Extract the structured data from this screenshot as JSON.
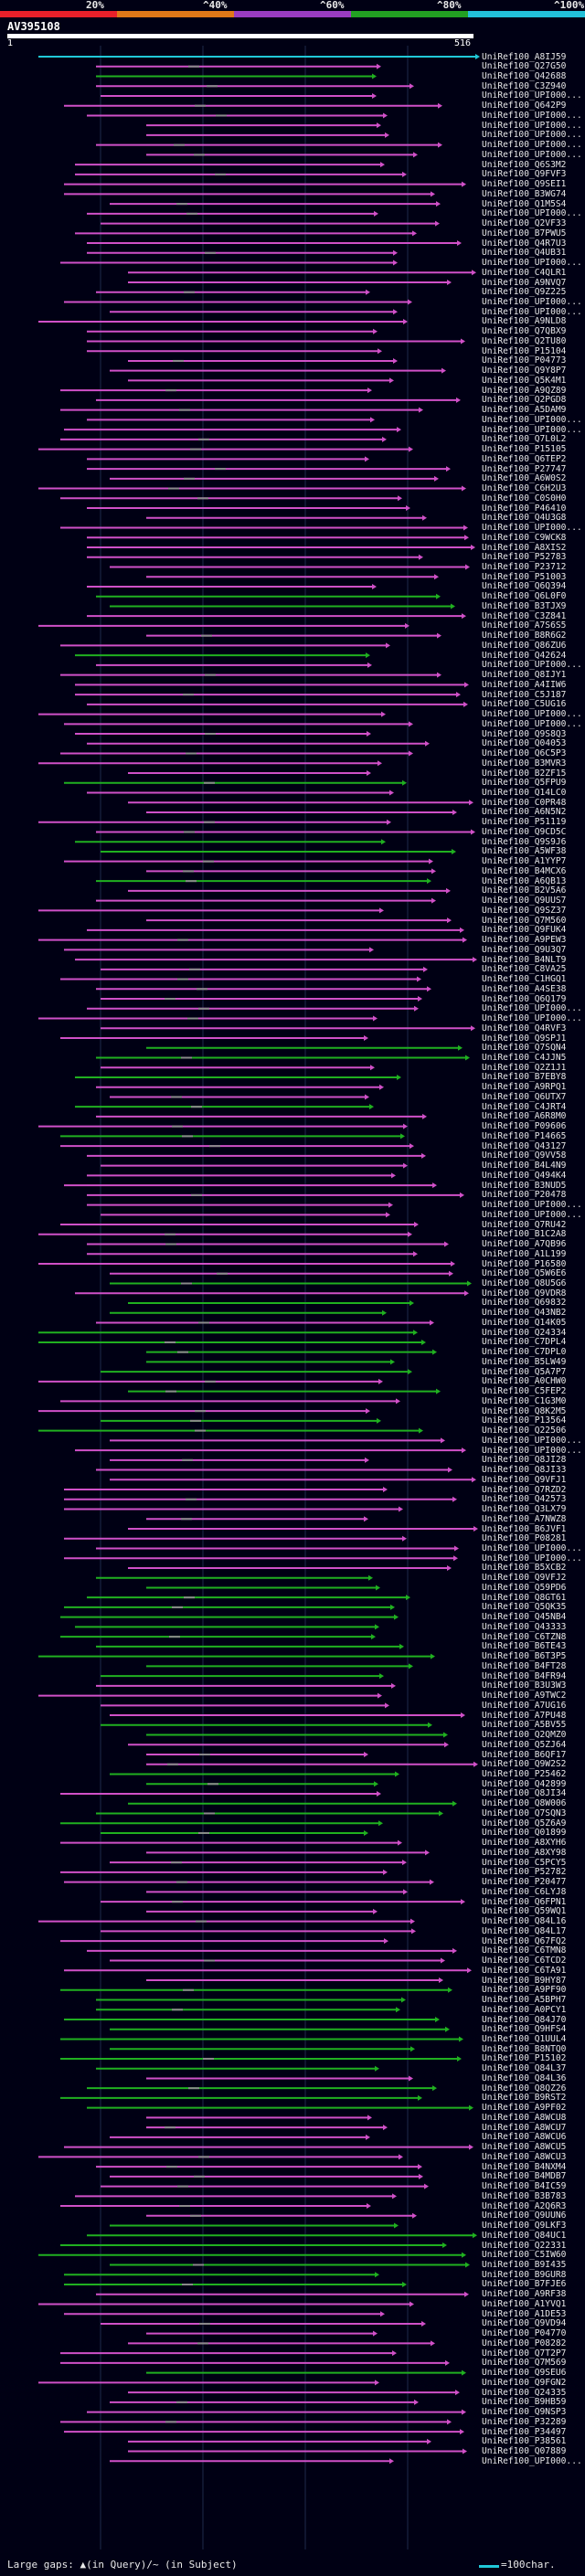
{
  "query": {
    "title": "AV395108",
    "start": "1",
    "end": "516"
  },
  "scale": [
    {
      "label": "20%",
      "color": "#e8202a"
    },
    {
      "label": "^40%",
      "color": "#e07818"
    },
    {
      "label": "^60%",
      "color": "#9a3cc0"
    },
    {
      "label": "^80%",
      "color": "#22a022"
    },
    {
      "label": "^100%",
      "color": "#22c0d8"
    }
  ],
  "hits": [
    {
      "id": "UniRef100_A8IJ59",
      "c": "cyan"
    },
    {
      "id": "UniRef100_Q27G50",
      "c": "magenta"
    },
    {
      "id": "UniRef100_Q42688",
      "c": "green"
    },
    {
      "id": "UniRef100_C3Z940",
      "c": "magenta"
    },
    {
      "id": "UniRef100_UPI000...",
      "c": "magenta"
    },
    {
      "id": "UniRef100_Q642P9",
      "c": "magenta"
    },
    {
      "id": "UniRef100_UPI000...",
      "c": "magenta"
    },
    {
      "id": "UniRef100_UPI000...",
      "c": "magenta"
    },
    {
      "id": "UniRef100_UPI000...",
      "c": "magenta"
    },
    {
      "id": "UniRef100_UPI000...",
      "c": "magenta"
    },
    {
      "id": "UniRef100_UPI000...",
      "c": "magenta"
    },
    {
      "id": "UniRef100_Q6S3M2",
      "c": "magenta"
    },
    {
      "id": "UniRef100_Q9FVF3",
      "c": "magenta"
    },
    {
      "id": "UniRef100_Q9SEI1",
      "c": "magenta"
    },
    {
      "id": "UniRef100_B3WG74",
      "c": "magenta"
    },
    {
      "id": "UniRef100_Q1M5S4",
      "c": "magenta"
    },
    {
      "id": "UniRef100_UPI000...",
      "c": "magenta"
    },
    {
      "id": "UniRef100_Q2VF33",
      "c": "magenta"
    },
    {
      "id": "UniRef100_B7PWU5",
      "c": "magenta"
    },
    {
      "id": "UniRef100_Q4R7U3",
      "c": "magenta"
    },
    {
      "id": "UniRef100_Q4UB31",
      "c": "magenta"
    },
    {
      "id": "UniRef100_UPI000...",
      "c": "magenta"
    },
    {
      "id": "UniRef100_C4QLR1",
      "c": "magenta"
    },
    {
      "id": "UniRef100_A9NVQ7",
      "c": "magenta"
    },
    {
      "id": "UniRef100_Q9Z225",
      "c": "magenta"
    },
    {
      "id": "UniRef100_UPI000...",
      "c": "magenta"
    },
    {
      "id": "UniRef100_UPI000...",
      "c": "magenta"
    },
    {
      "id": "UniRef100_A9NLD8",
      "c": "magenta"
    },
    {
      "id": "UniRef100_Q7QBX9",
      "c": "magenta"
    },
    {
      "id": "UniRef100_Q2TU80",
      "c": "magenta"
    },
    {
      "id": "UniRef100_P15104",
      "c": "magenta"
    },
    {
      "id": "UniRef100_P04773",
      "c": "magenta"
    },
    {
      "id": "UniRef100_Q9Y8P7",
      "c": "magenta"
    },
    {
      "id": "UniRef100_Q5K4M1",
      "c": "magenta"
    },
    {
      "id": "UniRef100_A9QZ89",
      "c": "magenta"
    },
    {
      "id": "UniRef100_Q2PGD8",
      "c": "magenta"
    },
    {
      "id": "UniRef100_A5DAM9",
      "c": "magenta"
    },
    {
      "id": "UniRef100_UPI000...",
      "c": "magenta"
    },
    {
      "id": "UniRef100_UPI000...",
      "c": "magenta"
    },
    {
      "id": "UniRef100_Q7L0L2",
      "c": "magenta"
    },
    {
      "id": "UniRef100_P15105",
      "c": "magenta"
    },
    {
      "id": "UniRef100_Q6TEP2",
      "c": "magenta"
    },
    {
      "id": "UniRef100_P27747",
      "c": "magenta"
    },
    {
      "id": "UniRef100_A6W0S2",
      "c": "magenta"
    },
    {
      "id": "UniRef100_C6H2U3",
      "c": "magenta"
    },
    {
      "id": "UniRef100_C0S0H0",
      "c": "magenta"
    },
    {
      "id": "UniRef100_P46410",
      "c": "magenta"
    },
    {
      "id": "UniRef100_Q4U3G8",
      "c": "magenta"
    },
    {
      "id": "UniRef100_UPI000...",
      "c": "magenta"
    },
    {
      "id": "UniRef100_C9WCK8",
      "c": "magenta"
    },
    {
      "id": "UniRef100_A8XIS2",
      "c": "magenta"
    },
    {
      "id": "UniRef100_P52783",
      "c": "magenta"
    },
    {
      "id": "UniRef100_P23712",
      "c": "magenta"
    },
    {
      "id": "UniRef100_P51003",
      "c": "magenta"
    },
    {
      "id": "UniRef100_Q6Q394",
      "c": "magenta"
    },
    {
      "id": "UniRef100_Q6L0F0",
      "c": "green"
    },
    {
      "id": "UniRef100_B3TJX9",
      "c": "green"
    },
    {
      "id": "UniRef100_C3Z841",
      "c": "magenta"
    },
    {
      "id": "UniRef100_A7S6S5",
      "c": "magenta"
    },
    {
      "id": "UniRef100_B8R6G2",
      "c": "magenta"
    },
    {
      "id": "UniRef100_Q86ZU6",
      "c": "magenta"
    },
    {
      "id": "UniRef100_Q42624",
      "c": "green"
    },
    {
      "id": "UniRef100_UPI000...",
      "c": "magenta"
    },
    {
      "id": "UniRef100_Q8IJY1",
      "c": "magenta"
    },
    {
      "id": "UniRef100_A4IIW6",
      "c": "magenta"
    },
    {
      "id": "UniRef100_C5J187",
      "c": "magenta"
    },
    {
      "id": "UniRef100_C5UG16",
      "c": "magenta"
    },
    {
      "id": "UniRef100_UPI000...",
      "c": "magenta"
    },
    {
      "id": "UniRef100_UPI000...",
      "c": "magenta"
    },
    {
      "id": "UniRef100_Q9S8Q3",
      "c": "magenta"
    },
    {
      "id": "UniRef100_Q04053",
      "c": "magenta"
    },
    {
      "id": "UniRef100_Q6C5P3",
      "c": "magenta"
    },
    {
      "id": "UniRef100_B3MVR3",
      "c": "magenta"
    },
    {
      "id": "UniRef100_B2ZF15",
      "c": "magenta"
    },
    {
      "id": "UniRef100_Q5FPU9",
      "c": "green"
    },
    {
      "id": "UniRef100_Q14LC0",
      "c": "magenta"
    },
    {
      "id": "UniRef100_C0PR48",
      "c": "magenta"
    },
    {
      "id": "UniRef100_A6N5N2",
      "c": "magenta"
    },
    {
      "id": "UniRef100_P51119",
      "c": "magenta"
    },
    {
      "id": "UniRef100_Q9CD5C",
      "c": "magenta"
    },
    {
      "id": "UniRef100_Q9S9J6",
      "c": "green"
    },
    {
      "id": "UniRef100_A5WF38",
      "c": "green"
    },
    {
      "id": "UniRef100_A1YYP7",
      "c": "magenta"
    },
    {
      "id": "UniRef100_B4MCX6",
      "c": "magenta"
    },
    {
      "id": "UniRef100_A6QB13",
      "c": "green"
    },
    {
      "id": "UniRef100_B2V5A6",
      "c": "magenta"
    },
    {
      "id": "UniRef100_Q9UUS7",
      "c": "magenta"
    },
    {
      "id": "UniRef100_Q9SZ37",
      "c": "magenta"
    },
    {
      "id": "UniRef100_Q7M560",
      "c": "magenta"
    },
    {
      "id": "UniRef100_Q9FUK4",
      "c": "magenta"
    },
    {
      "id": "UniRef100_A9PEW3",
      "c": "magenta"
    },
    {
      "id": "UniRef100_Q9U3Q7",
      "c": "magenta"
    },
    {
      "id": "UniRef100_B4NLT9",
      "c": "magenta"
    },
    {
      "id": "UniRef100_C8VA25",
      "c": "magenta"
    },
    {
      "id": "UniRef100_C1HGQ1",
      "c": "magenta"
    },
    {
      "id": "UniRef100_A4SE38",
      "c": "magenta"
    },
    {
      "id": "UniRef100_Q6Q179",
      "c": "magenta"
    },
    {
      "id": "UniRef100_UPI000...",
      "c": "magenta"
    },
    {
      "id": "UniRef100_UPI000...",
      "c": "magenta"
    },
    {
      "id": "UniRef100_Q4RVF3",
      "c": "magenta"
    },
    {
      "id": "UniRef100_Q9SPJ1",
      "c": "magenta"
    },
    {
      "id": "UniRef100_Q7SQN4",
      "c": "green"
    },
    {
      "id": "UniRef100_C4JJN5",
      "c": "green"
    },
    {
      "id": "UniRef100_Q2Z1J1",
      "c": "magenta"
    },
    {
      "id": "UniRef100_B7EBY8",
      "c": "green"
    },
    {
      "id": "UniRef100_A9RPQ1",
      "c": "magenta"
    },
    {
      "id": "UniRef100_Q6UTX7",
      "c": "magenta"
    },
    {
      "id": "UniRef100_C4JRT4",
      "c": "green"
    },
    {
      "id": "UniRef100_A6R8M0",
      "c": "magenta"
    },
    {
      "id": "UniRef100_P09606",
      "c": "magenta"
    },
    {
      "id": "UniRef100_P14665",
      "c": "green"
    },
    {
      "id": "UniRef100_Q43127",
      "c": "magenta"
    },
    {
      "id": "UniRef100_Q9VV58",
      "c": "magenta"
    },
    {
      "id": "UniRef100_B4L4N9",
      "c": "magenta"
    },
    {
      "id": "UniRef100_Q494K4",
      "c": "magenta"
    },
    {
      "id": "UniRef100_B3NUD5",
      "c": "magenta"
    },
    {
      "id": "UniRef100_P20478",
      "c": "magenta"
    },
    {
      "id": "UniRef100_UPI000...",
      "c": "magenta"
    },
    {
      "id": "UniRef100_UPI000...",
      "c": "magenta"
    },
    {
      "id": "UniRef100_Q7RU42",
      "c": "magenta"
    },
    {
      "id": "UniRef100_B1C2A8",
      "c": "magenta"
    },
    {
      "id": "UniRef100_A7QB96",
      "c": "magenta"
    },
    {
      "id": "UniRef100_A1L199",
      "c": "magenta"
    },
    {
      "id": "UniRef100_P16580",
      "c": "magenta"
    },
    {
      "id": "UniRef100_Q5W6E6",
      "c": "magenta"
    },
    {
      "id": "UniRef100_Q8U5G6",
      "c": "green"
    },
    {
      "id": "UniRef100_Q9VDR8",
      "c": "magenta"
    },
    {
      "id": "UniRef100_Q69832",
      "c": "green"
    },
    {
      "id": "UniRef100_Q43NB2",
      "c": "green"
    },
    {
      "id": "UniRef100_Q14K05",
      "c": "magenta"
    },
    {
      "id": "UniRef100_Q24334",
      "c": "green"
    },
    {
      "id": "UniRef100_C7DPL4",
      "c": "green"
    },
    {
      "id": "UniRef100_C7DPL0",
      "c": "green"
    },
    {
      "id": "UniRef100_B5LW49",
      "c": "green"
    },
    {
      "id": "UniRef100_Q5A7P7",
      "c": "green"
    },
    {
      "id": "UniRef100_A0CHW0",
      "c": "magenta"
    },
    {
      "id": "UniRef100_C5FEP2",
      "c": "green"
    },
    {
      "id": "UniRef100_C1G3M0",
      "c": "magenta"
    },
    {
      "id": "UniRef100_Q8K2M5",
      "c": "magenta"
    },
    {
      "id": "UniRef100_P13564",
      "c": "green"
    },
    {
      "id": "UniRef100_Q22506",
      "c": "green"
    },
    {
      "id": "UniRef100_UPI000...",
      "c": "magenta"
    },
    {
      "id": "UniRef100_UPI000...",
      "c": "magenta"
    },
    {
      "id": "UniRef100_Q8JI28",
      "c": "magenta"
    },
    {
      "id": "UniRef100_Q8JI33",
      "c": "magenta"
    },
    {
      "id": "UniRef100_Q9VFJ1",
      "c": "magenta"
    },
    {
      "id": "UniRef100_Q7RZD2",
      "c": "magenta"
    },
    {
      "id": "UniRef100_Q42573",
      "c": "magenta"
    },
    {
      "id": "UniRef100_Q3LX79",
      "c": "magenta"
    },
    {
      "id": "UniRef100_A7NWZ8",
      "c": "magenta"
    },
    {
      "id": "UniRef100_B6JVF1",
      "c": "magenta"
    },
    {
      "id": "UniRef100_P08281",
      "c": "magenta"
    },
    {
      "id": "UniRef100_UPI000...",
      "c": "magenta"
    },
    {
      "id": "UniRef100_UPI000...",
      "c": "magenta"
    },
    {
      "id": "UniRef100_B5XCB2",
      "c": "magenta"
    },
    {
      "id": "UniRef100_Q9VFJ2",
      "c": "green"
    },
    {
      "id": "UniRef100_Q59PD6",
      "c": "green"
    },
    {
      "id": "UniRef100_Q8GT61",
      "c": "green"
    },
    {
      "id": "UniRef100_Q5QK35",
      "c": "green"
    },
    {
      "id": "UniRef100_Q45NB4",
      "c": "green"
    },
    {
      "id": "UniRef100_Q43333",
      "c": "green"
    },
    {
      "id": "UniRef100_C6TZN8",
      "c": "green"
    },
    {
      "id": "UniRef100_B6TE43",
      "c": "green"
    },
    {
      "id": "UniRef100_B6T3P5",
      "c": "green"
    },
    {
      "id": "UniRef100_B4FT28",
      "c": "green"
    },
    {
      "id": "UniRef100_B4FR94",
      "c": "green"
    },
    {
      "id": "UniRef100_B3U3W3",
      "c": "magenta"
    },
    {
      "id": "UniRef100_A9TWC2",
      "c": "magenta"
    },
    {
      "id": "UniRef100_A7UG16",
      "c": "magenta"
    },
    {
      "id": "UniRef100_A7PU48",
      "c": "magenta"
    },
    {
      "id": "UniRef100_A5BV55",
      "c": "green"
    },
    {
      "id": "UniRef100_Q2QMZ0",
      "c": "green"
    },
    {
      "id": "UniRef100_Q5ZJ64",
      "c": "magenta"
    },
    {
      "id": "UniRef100_B6QF17",
      "c": "magenta"
    },
    {
      "id": "UniRef100_Q9W2S2",
      "c": "magenta"
    },
    {
      "id": "UniRef100_P25462",
      "c": "green"
    },
    {
      "id": "UniRef100_Q42899",
      "c": "green"
    },
    {
      "id": "UniRef100_Q8JI34",
      "c": "magenta"
    },
    {
      "id": "UniRef100_Q8W006",
      "c": "green"
    },
    {
      "id": "UniRef100_Q7SQN3",
      "c": "green"
    },
    {
      "id": "UniRef100_Q5Z6A9",
      "c": "green"
    },
    {
      "id": "UniRef100_Q01899",
      "c": "green"
    },
    {
      "id": "UniRef100_A8XYH6",
      "c": "magenta"
    },
    {
      "id": "UniRef100_A8XY98",
      "c": "magenta"
    },
    {
      "id": "UniRef100_C5PCY5",
      "c": "magenta"
    },
    {
      "id": "UniRef100_P52782",
      "c": "magenta"
    },
    {
      "id": "UniRef100_P20477",
      "c": "magenta"
    },
    {
      "id": "UniRef100_C6LYJ8",
      "c": "magenta"
    },
    {
      "id": "UniRef100_Q6FPN1",
      "c": "magenta"
    },
    {
      "id": "UniRef100_Q59WQ1",
      "c": "magenta"
    },
    {
      "id": "UniRef100_Q84L16",
      "c": "magenta"
    },
    {
      "id": "UniRef100_Q84L17",
      "c": "magenta"
    },
    {
      "id": "UniRef100_Q67FQ2",
      "c": "magenta"
    },
    {
      "id": "UniRef100_C6TMN8",
      "c": "magenta"
    },
    {
      "id": "UniRef100_C6TCD2",
      "c": "magenta"
    },
    {
      "id": "UniRef100_C6TA91",
      "c": "magenta"
    },
    {
      "id": "UniRef100_B9HY87",
      "c": "magenta"
    },
    {
      "id": "UniRef100_A9PF90",
      "c": "green"
    },
    {
      "id": "UniRef100_A5BPH7",
      "c": "green"
    },
    {
      "id": "UniRef100_A0PCY1",
      "c": "green"
    },
    {
      "id": "UniRef100_Q84J70",
      "c": "green"
    },
    {
      "id": "UniRef100_Q9HFS4",
      "c": "green"
    },
    {
      "id": "UniRef100_Q1UUL4",
      "c": "green"
    },
    {
      "id": "UniRef100_B8NTQ0",
      "c": "green"
    },
    {
      "id": "UniRef100_P15102",
      "c": "green"
    },
    {
      "id": "UniRef100_Q84L37",
      "c": "green"
    },
    {
      "id": "UniRef100_Q84L36",
      "c": "magenta"
    },
    {
      "id": "UniRef100_Q8QZ26",
      "c": "green"
    },
    {
      "id": "UniRef100_B9RST2",
      "c": "green"
    },
    {
      "id": "UniRef100_A9PF02",
      "c": "green"
    },
    {
      "id": "UniRef100_A8WCU8",
      "c": "magenta"
    },
    {
      "id": "UniRef100_A8WCU7",
      "c": "magenta"
    },
    {
      "id": "UniRef100_A8WCU6",
      "c": "magenta"
    },
    {
      "id": "UniRef100_A8WCU5",
      "c": "magenta"
    },
    {
      "id": "UniRef100_A8WCU3",
      "c": "magenta"
    },
    {
      "id": "UniRef100_B4NXM4",
      "c": "magenta"
    },
    {
      "id": "UniRef100_B4MDB7",
      "c": "magenta"
    },
    {
      "id": "UniRef100_B4IC59",
      "c": "magenta"
    },
    {
      "id": "UniRef100_B3B783",
      "c": "magenta"
    },
    {
      "id": "UniRef100_A2Q6R3",
      "c": "magenta"
    },
    {
      "id": "UniRef100_Q9UUN6",
      "c": "magenta"
    },
    {
      "id": "UniRef100_Q9LKF3",
      "c": "green"
    },
    {
      "id": "UniRef100_Q84UC1",
      "c": "green"
    },
    {
      "id": "UniRef100_Q22331",
      "c": "green"
    },
    {
      "id": "UniRef100_C5IW60",
      "c": "green"
    },
    {
      "id": "UniRef100_B9I435",
      "c": "green"
    },
    {
      "id": "UniRef100_B9GUR8",
      "c": "green"
    },
    {
      "id": "UniRef100_B7FJE6",
      "c": "green"
    },
    {
      "id": "UniRef100_A9RF38",
      "c": "magenta"
    },
    {
      "id": "UniRef100_A1YVQ1",
      "c": "magenta"
    },
    {
      "id": "UniRef100_A1DE53",
      "c": "magenta"
    },
    {
      "id": "UniRef100_Q9VD94",
      "c": "magenta"
    },
    {
      "id": "UniRef100_P04770",
      "c": "magenta"
    },
    {
      "id": "UniRef100_P08282",
      "c": "magenta"
    },
    {
      "id": "UniRef100_Q7T2P7",
      "c": "magenta"
    },
    {
      "id": "UniRef100_Q7M569",
      "c": "magenta"
    },
    {
      "id": "UniRef100_Q9SEU6",
      "c": "green"
    },
    {
      "id": "UniRef100_Q9FGN2",
      "c": "magenta"
    },
    {
      "id": "UniRef100_Q24335",
      "c": "magenta"
    },
    {
      "id": "UniRef100_B9HB59",
      "c": "magenta"
    },
    {
      "id": "UniRef100_Q9NSP3",
      "c": "magenta"
    },
    {
      "id": "UniRef100_P32289",
      "c": "magenta"
    },
    {
      "id": "UniRef100_P34497",
      "c": "magenta"
    },
    {
      "id": "UniRef100_P38561",
      "c": "magenta"
    },
    {
      "id": "UniRef100_Q07889",
      "c": "magenta"
    },
    {
      "id": "UniRef100_UPI000...",
      "c": "magenta"
    }
  ],
  "legend": {
    "gaps_label": "Large gaps: ▲(in Query)/~ (in Subject)",
    "scale_label": "=100char."
  },
  "colors": {
    "cyan": "#20c8d8",
    "magenta": "#d050c8",
    "green": "#20b020",
    "gray": "#8a8a8a"
  }
}
